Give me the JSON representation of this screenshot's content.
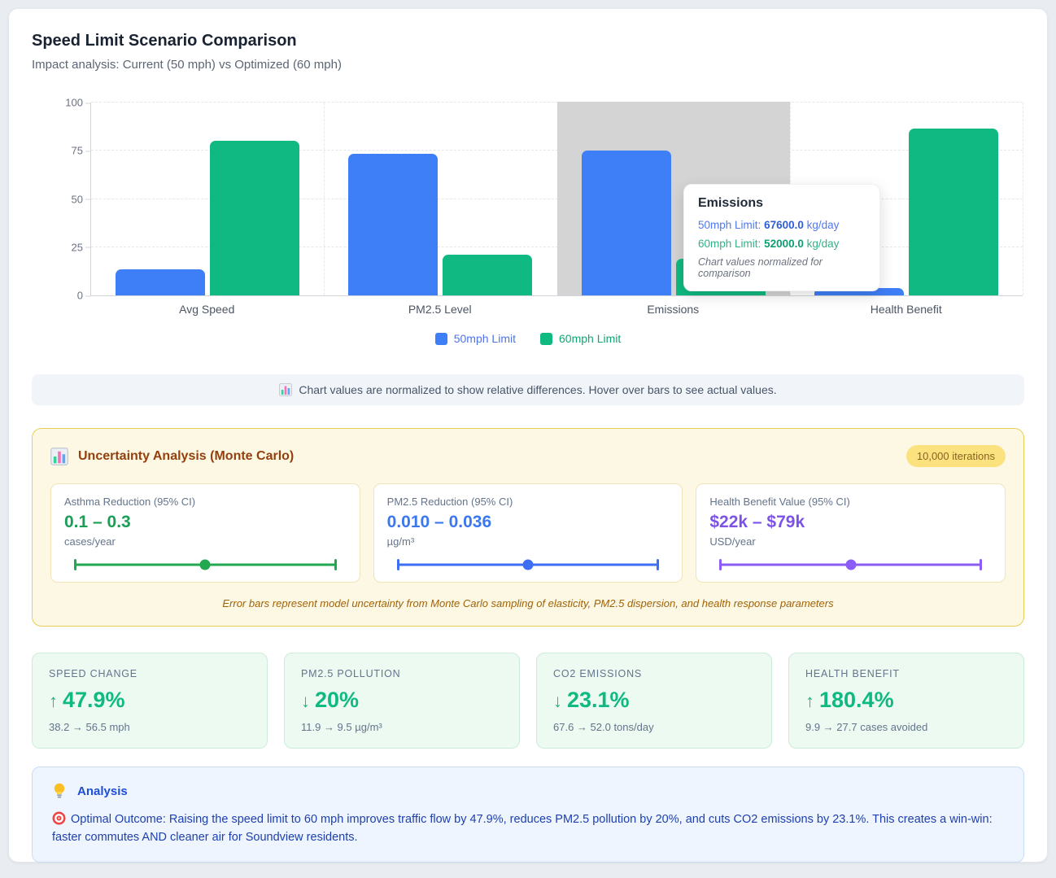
{
  "page": {
    "title": "Speed Limit Scenario Comparison",
    "subtitle": "Impact analysis: Current (50 mph) vs Optimized (60 mph)"
  },
  "chart_data": {
    "type": "bar",
    "title": "Speed Limit Scenario Comparison (normalized)",
    "categories": [
      "Avg Speed",
      "PM2.5 Level",
      "Emissions",
      "Health Benefit"
    ],
    "series": [
      {
        "name": "50mph Limit",
        "color": "#3e7ef6",
        "values": [
          13.5,
          73.5,
          75,
          4
        ]
      },
      {
        "name": "60mph Limit",
        "color": "#10b981",
        "values": [
          80,
          21,
          19,
          86.5
        ]
      }
    ],
    "ylim": [
      0,
      100
    ],
    "yticks": [
      0,
      25,
      50,
      75,
      100
    ],
    "grid": "dashed",
    "legend_position": "bottom",
    "normalized": true,
    "highlighted_category": "Emissions",
    "actual_values_shown": {
      "category": "Emissions",
      "50mph Limit": "67600.0 kg/day",
      "60mph Limit": "52000.0 kg/day"
    }
  },
  "tooltip": {
    "title": "Emissions",
    "rows": [
      {
        "label": "50mph Limit:",
        "value": "67600.0",
        "unit": "kg/day"
      },
      {
        "label": "60mph Limit:",
        "value": "52000.0",
        "unit": "kg/day"
      }
    ],
    "footnote": "Chart values normalized for comparison"
  },
  "legend": {
    "items": [
      {
        "label": "50mph Limit"
      },
      {
        "label": "60mph Limit"
      }
    ]
  },
  "note_bar": {
    "text": "Chart values are normalized to show relative differences. Hover over bars to see actual values."
  },
  "uncertainty": {
    "title": "Uncertainty Analysis (Monte Carlo)",
    "badge": "10,000 iterations",
    "cards": [
      {
        "label": "Asthma Reduction (95% CI)",
        "value": "0.1 – 0.3",
        "unit": "cases/year",
        "color": "#1d9e57"
      },
      {
        "label": "PM2.5 Reduction (95% CI)",
        "value": "0.010 – 0.036",
        "unit": "µg/m³",
        "color": "#3b78ef"
      },
      {
        "label": "Health Benefit Value (95% CI)",
        "value": "$22k – $79k",
        "unit": "USD/year",
        "color": "#7c53e6"
      }
    ],
    "footnote": "Error bars represent model uncertainty from Monte Carlo sampling of elasticity, PM2.5 dispersion, and health response parameters"
  },
  "stats": [
    {
      "label": "SPEED CHANGE",
      "arrow": "↑",
      "value": "47.9%",
      "detail": "38.2 → 56.5 mph"
    },
    {
      "label": "PM2.5 POLLUTION",
      "arrow": "↓",
      "value": "20%",
      "detail": "11.9 → 9.5 µg/m³"
    },
    {
      "label": "CO2 EMISSIONS",
      "arrow": "↓",
      "value": "23.1%",
      "detail": "67.6 → 52.0 tons/day"
    },
    {
      "label": "HEALTH BENEFIT",
      "arrow": "↑",
      "value": "180.4%",
      "detail": "9.9 → 27.7 cases avoided"
    }
  ],
  "analysis": {
    "title": "Analysis",
    "body": "Optimal Outcome: Raising the speed limit to 60 mph improves traffic flow by 47.9%, reduces PM2.5 pollution by 20%, and cuts CO2 emissions by 23.1%. This creates a win-win: faster commutes AND cleaner air for Soundview residents."
  }
}
